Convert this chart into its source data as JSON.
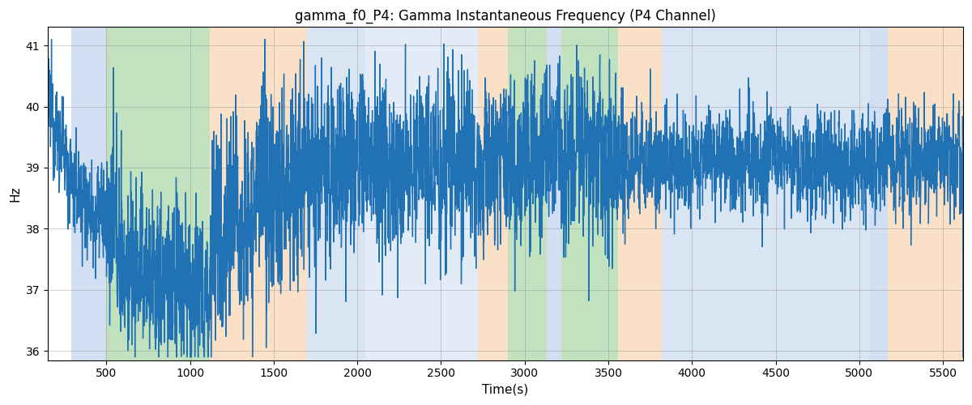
{
  "title": "gamma_f0_P4: Gamma Instantaneous Frequency (P4 Channel)",
  "xlabel": "Time(s)",
  "ylabel": "Hz",
  "ylim": [
    35.85,
    41.3
  ],
  "xlim": [
    150,
    5620
  ],
  "yticks": [
    36,
    37,
    38,
    39,
    40,
    41
  ],
  "xticks": [
    500,
    1000,
    1500,
    2000,
    2500,
    3000,
    3500,
    4000,
    4500,
    5000,
    5500
  ],
  "line_color": "#2171b5",
  "line_width": 1.0,
  "bg_color": "#ffffff",
  "shaded_regions": [
    {
      "xmin": 290,
      "xmax": 500,
      "color": "#aec6e8",
      "alpha": 0.55
    },
    {
      "xmin": 500,
      "xmax": 1120,
      "color": "#90c98a",
      "alpha": 0.55
    },
    {
      "xmin": 1120,
      "xmax": 1700,
      "color": "#f5c898",
      "alpha": 0.55
    },
    {
      "xmin": 1700,
      "xmax": 2050,
      "color": "#aec6e8",
      "alpha": 0.45
    },
    {
      "xmin": 2050,
      "xmax": 2720,
      "color": "#aec6e8",
      "alpha": 0.35
    },
    {
      "xmin": 2720,
      "xmax": 2900,
      "color": "#f5c898",
      "alpha": 0.55
    },
    {
      "xmin": 2900,
      "xmax": 3130,
      "color": "#90c98a",
      "alpha": 0.55
    },
    {
      "xmin": 3130,
      "xmax": 3220,
      "color": "#aec6e8",
      "alpha": 0.55
    },
    {
      "xmin": 3220,
      "xmax": 3560,
      "color": "#90c98a",
      "alpha": 0.55
    },
    {
      "xmin": 3560,
      "xmax": 3820,
      "color": "#f5c898",
      "alpha": 0.55
    },
    {
      "xmin": 3820,
      "xmax": 5060,
      "color": "#aec6e8",
      "alpha": 0.45
    },
    {
      "xmin": 5060,
      "xmax": 5170,
      "color": "#aec6e8",
      "alpha": 0.55
    },
    {
      "xmin": 5170,
      "xmax": 5620,
      "color": "#f5c898",
      "alpha": 0.55
    }
  ],
  "t_start": 150,
  "t_end": 5620,
  "n_points": 5470,
  "seed": 12345
}
